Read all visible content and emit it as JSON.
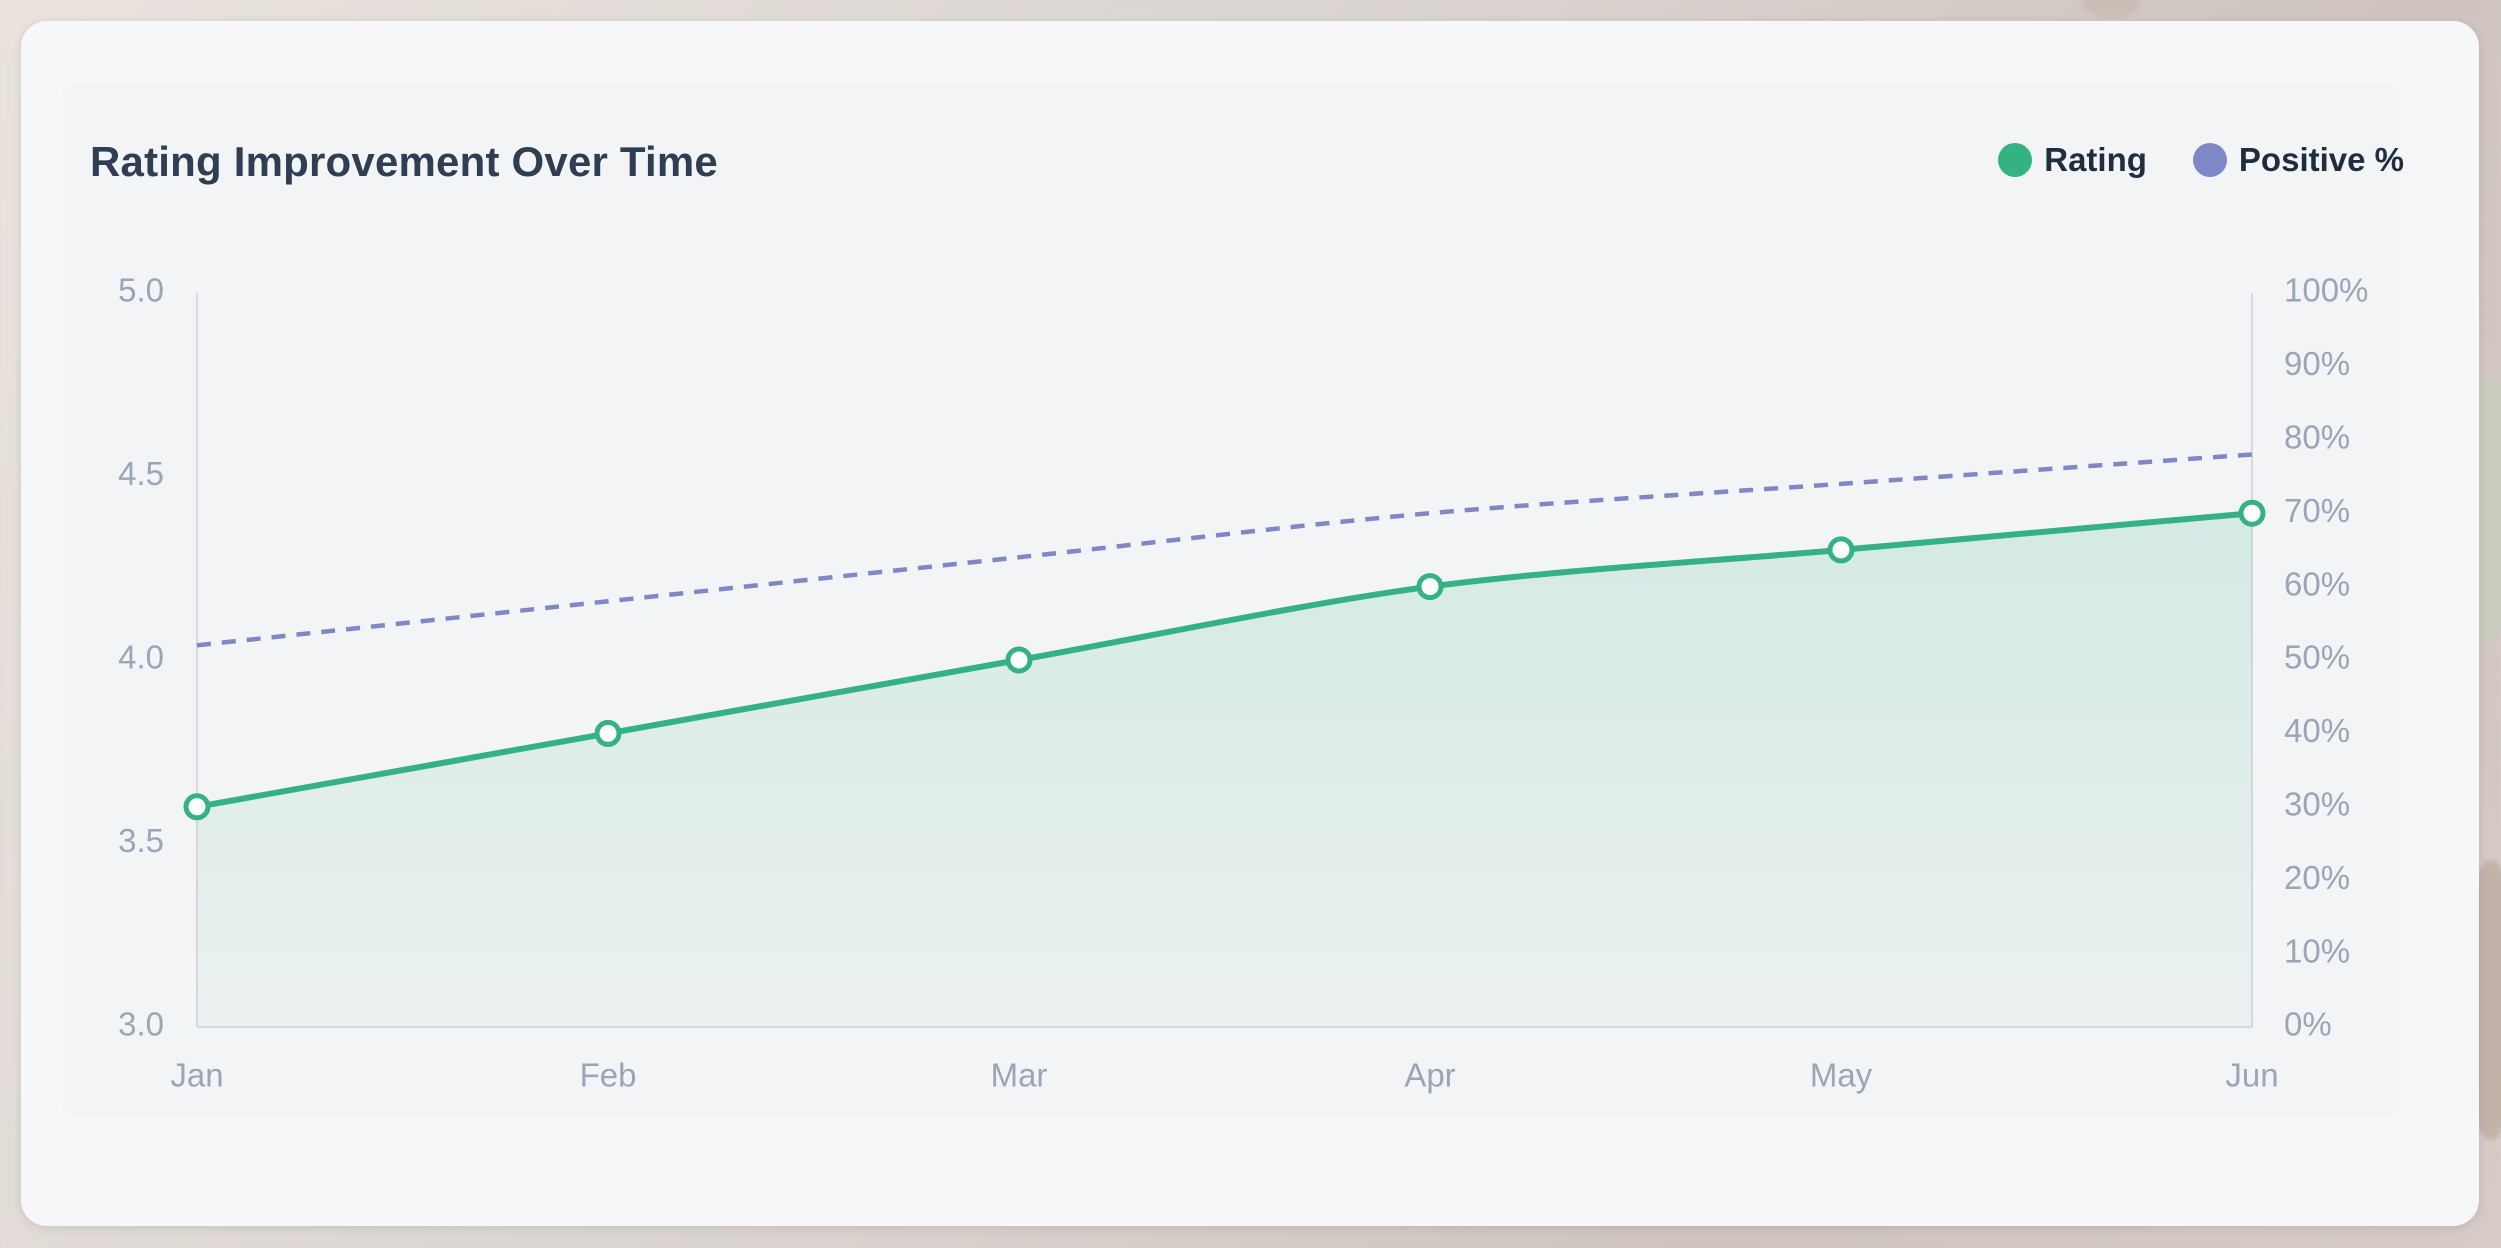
{
  "colors": {
    "rating": "#34b283",
    "positive": "#7f87c6",
    "axis": "#d5dae2",
    "tick": "#9aa5b8",
    "title": "#2f3e53"
  },
  "chart_data": {
    "type": "line",
    "title": "Rating Improvement Over Time",
    "categories": [
      "Jan",
      "Feb",
      "Mar",
      "Apr",
      "May",
      "Jun"
    ],
    "series": [
      {
        "name": "Rating",
        "axis": "left",
        "values": [
          3.6,
          3.8,
          4.0,
          4.2,
          4.3,
          4.4
        ],
        "style": "solid line with filled area and circle markers"
      },
      {
        "name": "Positive %",
        "axis": "right",
        "values": [
          52,
          58,
          64,
          70,
          74,
          78
        ],
        "style": "dashed line"
      }
    ],
    "y_left": {
      "ylim": [
        3.0,
        5.0
      ],
      "ticks": [
        "3.0",
        "3.5",
        "4.0",
        "4.5",
        "5.0"
      ]
    },
    "y_right": {
      "ylim": [
        0,
        100
      ],
      "ticks": [
        "0%",
        "10%",
        "20%",
        "30%",
        "40%",
        "50%",
        "60%",
        "70%",
        "80%",
        "90%",
        "100%"
      ]
    },
    "grid": false,
    "legend": "top-right"
  }
}
